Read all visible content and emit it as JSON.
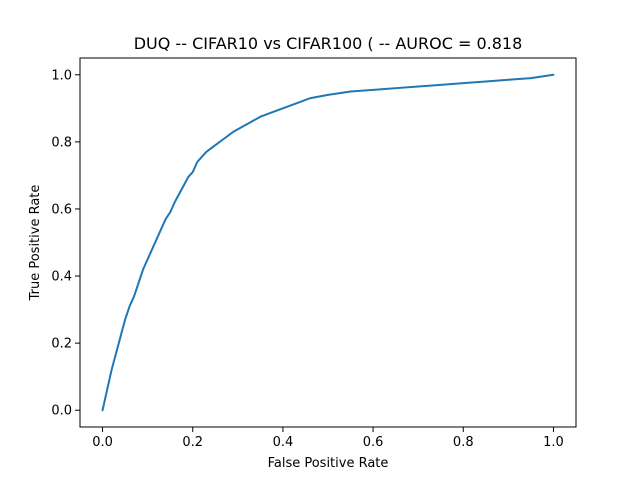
{
  "chart_data": {
    "type": "line",
    "title": "DUQ -- CIFAR10 vs CIFAR100 ( -- AUROC = 0.818",
    "xlabel": "False Positive Rate",
    "ylabel": "True Positive Rate",
    "xlim": [
      -0.05,
      1.05
    ],
    "ylim": [
      -0.05,
      1.05
    ],
    "xticks": [
      0.0,
      0.2,
      0.4,
      0.6,
      0.8,
      1.0
    ],
    "xtick_labels": [
      "0.0",
      "0.2",
      "0.4",
      "0.6",
      "0.8",
      "1.0"
    ],
    "yticks": [
      0.0,
      0.2,
      0.4,
      0.6,
      0.8,
      1.0
    ],
    "ytick_labels": [
      "0.0",
      "0.2",
      "0.4",
      "0.6",
      "0.8",
      "1.0"
    ],
    "grid": false,
    "series": [
      {
        "color": "#1f77b4",
        "x": [
          0.0,
          0.005,
          0.01,
          0.02,
          0.03,
          0.04,
          0.05,
          0.06,
          0.07,
          0.08,
          0.09,
          0.1,
          0.11,
          0.12,
          0.13,
          0.14,
          0.15,
          0.16,
          0.17,
          0.18,
          0.19,
          0.2,
          0.21,
          0.22,
          0.23,
          0.24,
          0.25,
          0.27,
          0.29,
          0.31,
          0.33,
          0.35,
          0.37,
          0.4,
          0.43,
          0.46,
          0.5,
          0.55,
          0.6,
          0.65,
          0.7,
          0.75,
          0.8,
          0.85,
          0.9,
          0.95,
          1.0
        ],
        "y": [
          0.0,
          0.03,
          0.06,
          0.12,
          0.17,
          0.22,
          0.27,
          0.31,
          0.34,
          0.38,
          0.42,
          0.45,
          0.48,
          0.51,
          0.54,
          0.57,
          0.59,
          0.62,
          0.645,
          0.67,
          0.695,
          0.71,
          0.74,
          0.755,
          0.77,
          0.78,
          0.79,
          0.81,
          0.83,
          0.845,
          0.86,
          0.875,
          0.885,
          0.9,
          0.915,
          0.93,
          0.94,
          0.95,
          0.955,
          0.96,
          0.965,
          0.97,
          0.975,
          0.98,
          0.985,
          0.99,
          1.0
        ]
      }
    ]
  }
}
